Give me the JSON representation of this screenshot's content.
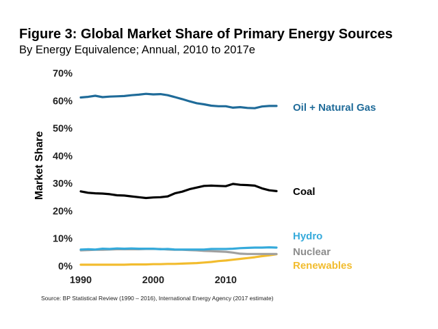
{
  "header": {
    "title": "Figure 3: Global Market Share of Primary Energy Sources",
    "subtitle": "By Energy Equivalence; Annual, 2010 to 2017e"
  },
  "footer": {
    "source": "Source: BP Statistical Review (1990 – 2016), International Energy Agency (2017 estimate)"
  },
  "chart_data": {
    "type": "line",
    "title": "Figure 3: Global Market Share of Primary Energy Sources",
    "subtitle": "By Energy Equivalence; Annual, 2010 to 2017e",
    "xlabel": "",
    "ylabel": "Market Share",
    "xlim": [
      1990,
      2017
    ],
    "ylim": [
      0,
      70
    ],
    "xticks": [
      1990,
      2000,
      2010
    ],
    "xtick_labels": [
      "1990",
      "2000",
      "2010"
    ],
    "yticks": [
      0,
      10,
      20,
      30,
      40,
      50,
      60,
      70
    ],
    "ytick_labels": [
      "0%",
      "10%",
      "20%",
      "30%",
      "40%",
      "50%",
      "60%",
      "70%"
    ],
    "grid": false,
    "legend": "direct labels at right end of lines",
    "x": [
      1990,
      1991,
      1992,
      1993,
      1994,
      1995,
      1996,
      1997,
      1998,
      1999,
      2000,
      2001,
      2002,
      2003,
      2004,
      2005,
      2006,
      2007,
      2008,
      2009,
      2010,
      2011,
      2012,
      2013,
      2014,
      2015,
      2016,
      2017
    ],
    "series": [
      {
        "name": "Oil + Natural Gas",
        "color": "#1f6b99",
        "values": [
          61.2,
          61.4,
          61.8,
          61.3,
          61.5,
          61.6,
          61.7,
          62.0,
          62.2,
          62.5,
          62.3,
          62.4,
          62.0,
          61.3,
          60.6,
          59.8,
          59.1,
          58.7,
          58.2,
          58.0,
          58.0,
          57.5,
          57.7,
          57.4,
          57.3,
          57.9,
          58.1,
          58.1
        ]
      },
      {
        "name": "Coal",
        "color": "#000000",
        "values": [
          27.1,
          26.6,
          26.4,
          26.3,
          26.1,
          25.7,
          25.6,
          25.3,
          25.0,
          24.7,
          24.9,
          25.0,
          25.3,
          26.4,
          27.0,
          27.9,
          28.5,
          29.1,
          29.2,
          29.1,
          29.0,
          29.8,
          29.5,
          29.4,
          29.2,
          28.2,
          27.5,
          27.2
        ]
      },
      {
        "name": "Hydro",
        "color": "#35aadb",
        "values": [
          6.0,
          6.1,
          6.0,
          6.3,
          6.2,
          6.4,
          6.3,
          6.4,
          6.3,
          6.3,
          6.3,
          6.1,
          6.2,
          6.0,
          6.0,
          6.0,
          6.0,
          6.0,
          6.2,
          6.2,
          6.2,
          6.3,
          6.5,
          6.6,
          6.7,
          6.7,
          6.8,
          6.7
        ]
      },
      {
        "name": "Nuclear",
        "color": "#a0a0a0",
        "values": [
          5.7,
          5.8,
          5.9,
          5.9,
          6.0,
          6.1,
          6.1,
          6.1,
          6.1,
          6.2,
          6.2,
          6.2,
          6.0,
          5.9,
          5.9,
          5.8,
          5.7,
          5.5,
          5.4,
          5.3,
          5.2,
          4.9,
          4.5,
          4.4,
          4.4,
          4.4,
          4.4,
          4.4
        ]
      },
      {
        "name": "Renewables",
        "color": "#f2bc2e",
        "values": [
          0.5,
          0.5,
          0.5,
          0.5,
          0.5,
          0.5,
          0.5,
          0.6,
          0.6,
          0.6,
          0.7,
          0.7,
          0.8,
          0.8,
          0.9,
          1.0,
          1.1,
          1.3,
          1.5,
          1.8,
          2.0,
          2.3,
          2.6,
          2.9,
          3.2,
          3.6,
          3.9,
          4.3
        ]
      }
    ]
  }
}
